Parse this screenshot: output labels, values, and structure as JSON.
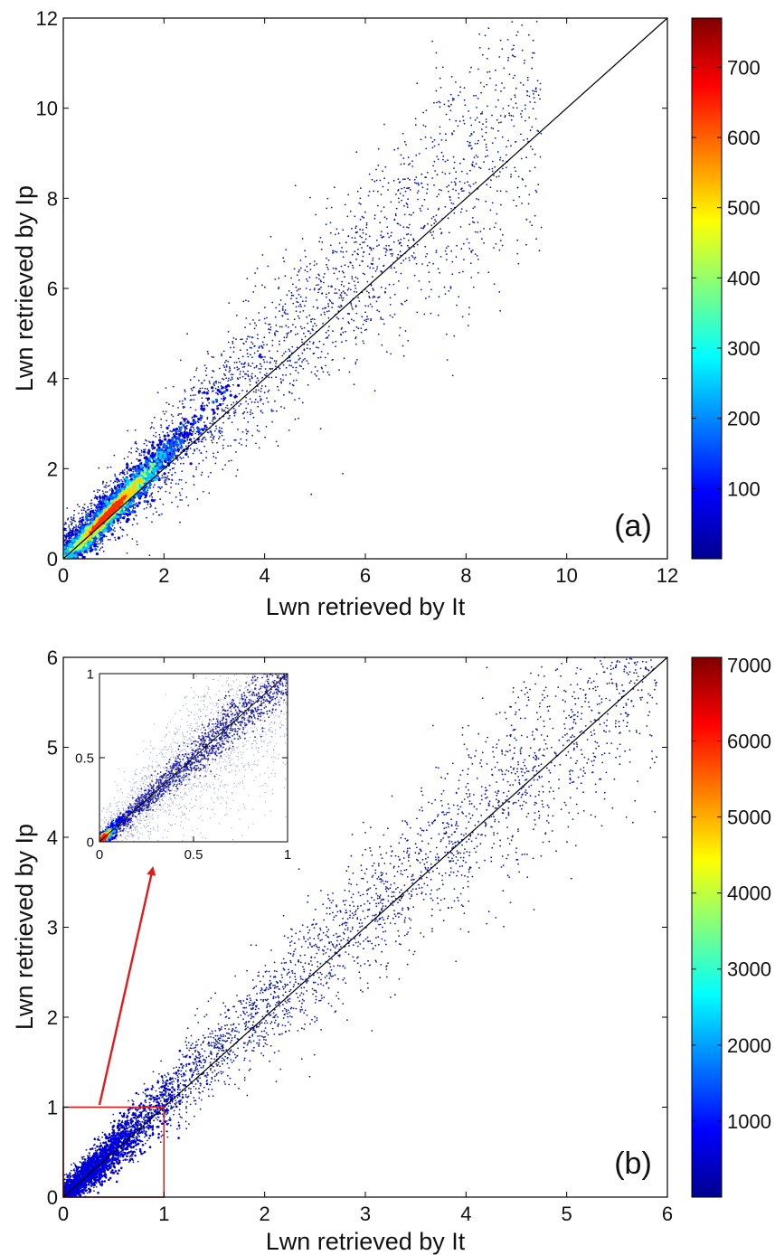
{
  "chart_data": [
    {
      "type": "scatter",
      "panel_label": "(a)",
      "xlabel": "Lwn retrieved by It",
      "ylabel": "Lwn retrieved by Ip",
      "xlim": [
        0,
        12
      ],
      "ylim": [
        0,
        12
      ],
      "xticks": [
        "0",
        "2",
        "4",
        "6",
        "8",
        "10",
        "12"
      ],
      "yticks": [
        "0",
        "2",
        "4",
        "6",
        "8",
        "10",
        "12"
      ],
      "reference_line": {
        "x": [
          0,
          12
        ],
        "y": [
          0,
          12
        ]
      },
      "density_ridge": {
        "slope_near_origin": 1.25,
        "peak_density_location": [
          0.9,
          1.0
        ]
      },
      "colorbar": {
        "ticks": [
          "100",
          "200",
          "300",
          "400",
          "500",
          "600",
          "700"
        ],
        "max": 770,
        "colormap": "jet"
      }
    },
    {
      "type": "scatter",
      "panel_label": "(b)",
      "xlabel": "Lwn retrieved by It",
      "ylabel": "Lwn retrieved by Ip",
      "xlim": [
        0,
        6
      ],
      "ylim": [
        0,
        6
      ],
      "xticks": [
        "0",
        "1",
        "2",
        "3",
        "4",
        "5",
        "6"
      ],
      "yticks": [
        "0",
        "1",
        "2",
        "3",
        "4",
        "5",
        "6"
      ],
      "reference_line": {
        "x": [
          0,
          6
        ],
        "y": [
          0,
          6
        ]
      },
      "highlight_box": {
        "x": [
          0,
          1
        ],
        "y": [
          0,
          1
        ],
        "color": "#e01b1b"
      },
      "colorbar": {
        "ticks": [
          "1000",
          "2000",
          "3000",
          "4000",
          "5000",
          "6000",
          "7000"
        ],
        "max": 7100,
        "colormap": "jet"
      },
      "inset": {
        "xlim": [
          0,
          1
        ],
        "ylim": [
          0,
          1
        ],
        "xticks": [
          "0",
          "0.5",
          "1"
        ],
        "yticks": [
          "0",
          "0.5",
          "1"
        ]
      }
    }
  ]
}
